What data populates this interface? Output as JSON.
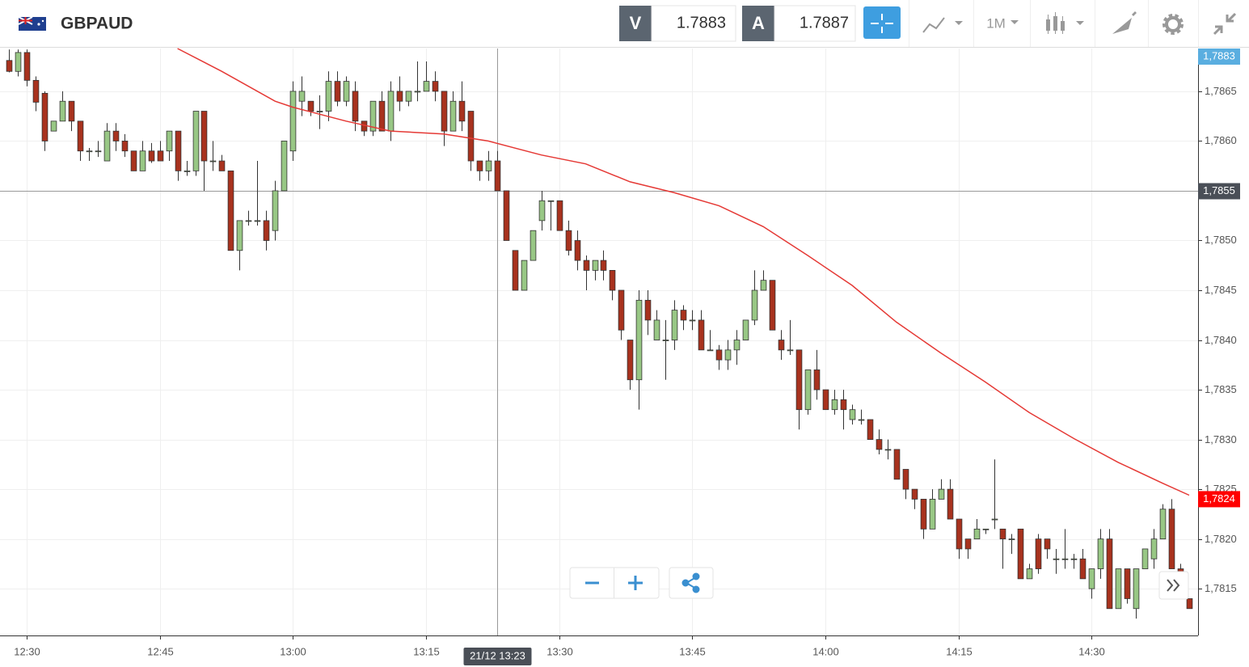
{
  "toolbar": {
    "symbol": "GBPAUD",
    "bid_label": "V",
    "bid": "1.7883",
    "ask_label": "A",
    "ask": "1.7887",
    "timeframe": "1M"
  },
  "chart_data": {
    "type": "candlestick",
    "up_color": "#98c785",
    "down_color": "#a8321e",
    "xlim": [
      "12:27",
      "14:42"
    ],
    "xticks": [
      "12:30",
      "12:45",
      "13:00",
      "13:15",
      "13:30",
      "13:45",
      "14:00",
      "14:15",
      "14:30"
    ],
    "ylim": [
      1.78103,
      1.78693
    ],
    "yticks": [
      {
        "value": 1.7865,
        "label": "1,7865"
      },
      {
        "value": 1.786,
        "label": "1,7860"
      },
      {
        "value": 1.7855,
        "label": "1,7855"
      },
      {
        "value": 1.785,
        "label": "1,7850"
      },
      {
        "value": 1.7845,
        "label": "1,7845"
      },
      {
        "value": 1.784,
        "label": "1,7840"
      },
      {
        "value": 1.7835,
        "label": "1,7835"
      },
      {
        "value": 1.783,
        "label": "1,7830"
      },
      {
        "value": 1.7825,
        "label": "1,7825"
      },
      {
        "value": 1.782,
        "label": "1,7820"
      },
      {
        "value": 1.7815,
        "label": "1,7815"
      }
    ],
    "grid": true,
    "x": [
      "12:28",
      "12:29",
      "12:30",
      "12:31",
      "12:32",
      "12:33",
      "12:34",
      "12:35",
      "12:36",
      "12:37",
      "12:38",
      "12:39",
      "12:40",
      "12:41",
      "12:42",
      "12:43",
      "12:44",
      "12:45",
      "12:46",
      "12:47",
      "12:48",
      "12:49",
      "12:50",
      "12:51",
      "12:52",
      "12:53",
      "12:54",
      "12:55",
      "12:56",
      "12:57",
      "12:58",
      "12:59",
      "13:00",
      "13:01",
      "13:02",
      "13:03",
      "13:04",
      "13:05",
      "13:06",
      "13:07",
      "13:08",
      "13:09",
      "13:10",
      "13:11",
      "13:12",
      "13:13",
      "13:14",
      "13:15",
      "13:16",
      "13:17",
      "13:18",
      "13:19",
      "13:20",
      "13:21",
      "13:22",
      "13:23",
      "13:24",
      "13:25",
      "13:26",
      "13:27",
      "13:28",
      "13:29",
      "13:30",
      "13:31",
      "13:32",
      "13:33",
      "13:34",
      "13:35",
      "13:36",
      "13:37",
      "13:38",
      "13:39",
      "13:40",
      "13:41",
      "13:42",
      "13:43",
      "13:44",
      "13:45",
      "13:46",
      "13:47",
      "13:48",
      "13:49",
      "13:50",
      "13:51",
      "13:52",
      "13:53",
      "13:54",
      "13:55",
      "13:56",
      "13:57",
      "13:58",
      "13:59",
      "14:00",
      "14:01",
      "14:02",
      "14:03",
      "14:04",
      "14:05",
      "14:06",
      "14:07",
      "14:08",
      "14:09",
      "14:10",
      "14:11",
      "14:12",
      "14:13",
      "14:14",
      "14:15",
      "14:16",
      "14:17",
      "14:18",
      "14:19",
      "14:20",
      "14:21",
      "14:22",
      "14:23",
      "14:24",
      "14:25",
      "14:26",
      "14:27",
      "14:28",
      "14:29",
      "14:30",
      "14:31",
      "14:32",
      "14:33",
      "14:34",
      "14:35",
      "14:36",
      "14:37",
      "14:38",
      "14:39",
      "14:40",
      "14:41"
    ],
    "ohlc": [
      [
        1.78681,
        1.78692,
        1.78669,
        1.7867
      ],
      [
        1.7867,
        1.78692,
        1.78665,
        1.78689
      ],
      [
        1.78689,
        1.78692,
        1.78655,
        1.78661
      ],
      [
        1.78661,
        1.78665,
        1.7863,
        1.78639
      ],
      [
        1.78648,
        1.7865,
        1.7859,
        1.786
      ],
      [
        1.7861,
        1.7862,
        1.7861,
        1.7862
      ],
      [
        1.7862,
        1.7865,
        1.7862,
        1.7864
      ],
      [
        1.7864,
        1.7864,
        1.7861,
        1.7862
      ],
      [
        1.7862,
        1.7862,
        1.7858,
        1.7859
      ],
      [
        1.7859,
        1.78593,
        1.7858,
        1.7859
      ],
      [
        1.7859,
        1.786,
        1.78584,
        1.7859
      ],
      [
        1.7858,
        1.78618,
        1.7858,
        1.7861
      ],
      [
        1.7861,
        1.78618,
        1.7859,
        1.786
      ],
      [
        1.786,
        1.78607,
        1.78584,
        1.7859
      ],
      [
        1.7859,
        1.7859,
        1.7857,
        1.7857
      ],
      [
        1.7857,
        1.786,
        1.7857,
        1.7859
      ],
      [
        1.7859,
        1.78598,
        1.78578,
        1.7858
      ],
      [
        1.7859,
        1.786,
        1.7858,
        1.7858
      ],
      [
        1.7859,
        1.7861,
        1.7858,
        1.7861
      ],
      [
        1.7861,
        1.7861,
        1.7856,
        1.7857
      ],
      [
        1.7857,
        1.7858,
        1.78565,
        1.7857
      ],
      [
        1.7857,
        1.7863,
        1.78565,
        1.7863
      ],
      [
        1.7863,
        1.7863,
        1.7855,
        1.7858
      ],
      [
        1.7858,
        1.786,
        1.7857,
        1.7858
      ],
      [
        1.7858,
        1.78586,
        1.7857,
        1.7857
      ],
      [
        1.7857,
        1.7857,
        1.7849,
        1.7849
      ],
      [
        1.7849,
        1.7852,
        1.7847,
        1.7852
      ],
      [
        1.7852,
        1.7853,
        1.78515,
        1.7852
      ],
      [
        1.7852,
        1.7858,
        1.78515,
        1.7852
      ],
      [
        1.7852,
        1.7853,
        1.7849,
        1.785
      ],
      [
        1.7851,
        1.7856,
        1.785,
        1.7855
      ],
      [
        1.7855,
        1.786,
        1.7855,
        1.786
      ],
      [
        1.7859,
        1.7866,
        1.7858,
        1.7865
      ],
      [
        1.7864,
        1.78665,
        1.78625,
        1.7865
      ],
      [
        1.7864,
        1.7864,
        1.78625,
        1.7863
      ],
      [
        1.7863,
        1.78646,
        1.78612,
        1.7863
      ],
      [
        1.7863,
        1.7867,
        1.7862,
        1.7866
      ],
      [
        1.7866,
        1.7867,
        1.78635,
        1.7864
      ],
      [
        1.7864,
        1.78665,
        1.78635,
        1.7866
      ],
      [
        1.7865,
        1.7866,
        1.7861,
        1.7862
      ],
      [
        1.7862,
        1.7862,
        1.78605,
        1.7861
      ],
      [
        1.7861,
        1.7864,
        1.78605,
        1.7864
      ],
      [
        1.7864,
        1.7865,
        1.7861,
        1.7861
      ],
      [
        1.7861,
        1.7866,
        1.786,
        1.7865
      ],
      [
        1.7865,
        1.78665,
        1.7863,
        1.7864
      ],
      [
        1.7864,
        1.7865,
        1.78635,
        1.7865
      ],
      [
        1.7865,
        1.7868,
        1.7864,
        1.7865
      ],
      [
        1.7865,
        1.7868,
        1.7865,
        1.7866
      ],
      [
        1.7866,
        1.7867,
        1.7864,
        1.7865
      ],
      [
        1.7865,
        1.7865,
        1.78595,
        1.7861
      ],
      [
        1.7861,
        1.7865,
        1.7861,
        1.7864
      ],
      [
        1.7864,
        1.7866,
        1.7861,
        1.7862
      ],
      [
        1.7863,
        1.7863,
        1.7857,
        1.7858
      ],
      [
        1.7858,
        1.7858,
        1.7856,
        1.7857
      ],
      [
        1.7857,
        1.7859,
        1.7856,
        1.7858
      ],
      [
        1.7858,
        1.7859,
        1.7855,
        1.7855
      ],
      [
        1.7855,
        1.7855,
        1.785,
        1.785
      ],
      [
        1.7849,
        1.7849,
        1.7845,
        1.7845
      ],
      [
        1.7845,
        1.7848,
        1.7845,
        1.7848
      ],
      [
        1.7848,
        1.7851,
        1.7848,
        1.7851
      ],
      [
        1.7852,
        1.7855,
        1.7851,
        1.7854
      ],
      [
        1.7854,
        1.7854,
        1.7851,
        1.7854
      ],
      [
        1.7854,
        1.7854,
        1.7851,
        1.7851
      ],
      [
        1.7851,
        1.7852,
        1.78485,
        1.7849
      ],
      [
        1.785,
        1.7851,
        1.7847,
        1.7848
      ],
      [
        1.7848,
        1.78485,
        1.7845,
        1.7847
      ],
      [
        1.7847,
        1.7848,
        1.7846,
        1.7848
      ],
      [
        1.7848,
        1.7849,
        1.7846,
        1.7847
      ],
      [
        1.7847,
        1.7847,
        1.7844,
        1.7845
      ],
      [
        1.7845,
        1.7845,
        1.784,
        1.7841
      ],
      [
        1.784,
        1.784,
        1.7835,
        1.7836
      ],
      [
        1.7836,
        1.7845,
        1.7833,
        1.7844
      ],
      [
        1.7844,
        1.7845,
        1.78405,
        1.7842
      ],
      [
        1.784,
        1.7843,
        1.784,
        1.7842
      ],
      [
        1.784,
        1.7842,
        1.7836,
        1.784
      ],
      [
        1.784,
        1.7844,
        1.7839,
        1.7843
      ],
      [
        1.7843,
        1.78435,
        1.7841,
        1.7842
      ],
      [
        1.7842,
        1.7843,
        1.7841,
        1.7842
      ],
      [
        1.7842,
        1.7843,
        1.7839,
        1.7839
      ],
      [
        1.7839,
        1.7841,
        1.7839,
        1.7839
      ],
      [
        1.7839,
        1.78395,
        1.7837,
        1.7838
      ],
      [
        1.7838,
        1.784,
        1.7837,
        1.7839
      ],
      [
        1.7839,
        1.7841,
        1.78375,
        1.784
      ],
      [
        1.784,
        1.7842,
        1.784,
        1.7842
      ],
      [
        1.7842,
        1.7847,
        1.78415,
        1.7845
      ],
      [
        1.7845,
        1.7847,
        1.7845,
        1.7846
      ],
      [
        1.7846,
        1.7846,
        1.7841,
        1.7841
      ],
      [
        1.784,
        1.7841,
        1.7838,
        1.7839
      ],
      [
        1.7839,
        1.7842,
        1.78385,
        1.7839
      ],
      [
        1.7839,
        1.7839,
        1.7831,
        1.7833
      ],
      [
        1.7833,
        1.7837,
        1.78325,
        1.7837
      ],
      [
        1.7837,
        1.7839,
        1.7834,
        1.7835
      ],
      [
        1.7835,
        1.7835,
        1.7833,
        1.7833
      ],
      [
        1.7833,
        1.7835,
        1.78325,
        1.7834
      ],
      [
        1.7834,
        1.7835,
        1.7831,
        1.7833
      ],
      [
        1.7832,
        1.78335,
        1.78315,
        1.7833
      ],
      [
        1.7832,
        1.7833,
        1.78315,
        1.7832
      ],
      [
        1.7832,
        1.7832,
        1.783,
        1.783
      ],
      [
        1.783,
        1.7831,
        1.78285,
        1.7829
      ],
      [
        1.7829,
        1.783,
        1.7828,
        1.7829
      ],
      [
        1.7829,
        1.7829,
        1.7826,
        1.7826
      ],
      [
        1.7827,
        1.7827,
        1.7824,
        1.7825
      ],
      [
        1.7825,
        1.7825,
        1.7823,
        1.7824
      ],
      [
        1.7824,
        1.7824,
        1.782,
        1.7821
      ],
      [
        1.7821,
        1.7825,
        1.7821,
        1.7824
      ],
      [
        1.7824,
        1.7826,
        1.7824,
        1.7825
      ],
      [
        1.7825,
        1.7826,
        1.7822,
        1.7822
      ],
      [
        1.7822,
        1.7822,
        1.7818,
        1.7819
      ],
      [
        1.782,
        1.782,
        1.7818,
        1.7819
      ],
      [
        1.782,
        1.7822,
        1.782,
        1.7821
      ],
      [
        1.7821,
        1.7821,
        1.78205,
        1.7821
      ],
      [
        1.7822,
        1.7828,
        1.7821,
        1.7822
      ],
      [
        1.7821,
        1.7821,
        1.7817,
        1.782
      ],
      [
        1.782,
        1.78205,
        1.78185,
        1.782
      ],
      [
        1.7821,
        1.7821,
        1.7816,
        1.7816
      ],
      [
        1.7816,
        1.78175,
        1.7816,
        1.7817
      ],
      [
        1.782,
        1.78205,
        1.78165,
        1.7817
      ],
      [
        1.782,
        1.782,
        1.7818,
        1.7819
      ],
      [
        1.7818,
        1.7819,
        1.78165,
        1.7818
      ],
      [
        1.7818,
        1.7821,
        1.7817,
        1.7818
      ],
      [
        1.7818,
        1.78185,
        1.7817,
        1.7818
      ],
      [
        1.7818,
        1.7819,
        1.7816,
        1.7816
      ],
      [
        1.7815,
        1.7817,
        1.7814,
        1.7817
      ],
      [
        1.7817,
        1.7821,
        1.7816,
        1.782
      ],
      [
        1.782,
        1.7821,
        1.7813,
        1.7813
      ],
      [
        1.7813,
        1.7817,
        1.7813,
        1.7817
      ],
      [
        1.7817,
        1.7817,
        1.78135,
        1.7814
      ],
      [
        1.7813,
        1.7817,
        1.7812,
        1.7817
      ],
      [
        1.7817,
        1.7819,
        1.7817,
        1.7819
      ],
      [
        1.7818,
        1.7821,
        1.7817,
        1.782
      ],
      [
        1.782,
        1.78235,
        1.782,
        1.7823
      ],
      [
        1.7823,
        1.7824,
        1.7817,
        1.7817
      ],
      [
        1.7817,
        1.78175,
        1.78145,
        1.7815
      ],
      [
        1.7814,
        1.7814,
        1.7813,
        1.7813
      ]
    ],
    "ma": {
      "color": "#e53935",
      "x": [
        "12:47",
        "12:52",
        "12:58",
        "13:00",
        "13:06",
        "13:11",
        "13:17",
        "13:22",
        "13:28",
        "13:33",
        "13:38",
        "13:43",
        "13:48",
        "13:53",
        "13:58",
        "14:03",
        "14:08",
        "14:13",
        "14:18",
        "14:23",
        "14:28",
        "14:33",
        "14:38",
        "14:41"
      ],
      "values": [
        1.78693,
        1.7867,
        1.7864,
        1.78634,
        1.7862,
        1.7861,
        1.78607,
        1.786,
        1.78586,
        1.78577,
        1.78559,
        1.78548,
        1.78535,
        1.78514,
        1.78485,
        1.78455,
        1.78418,
        1.78387,
        1.78358,
        1.78327,
        1.78301,
        1.78277,
        1.78256,
        1.78244
      ]
    },
    "price_tags": [
      {
        "value": 1.7883,
        "label": "1,7883",
        "color": "#5aaee0"
      },
      {
        "value": 1.7824,
        "label": "1,7824",
        "color": "#ff0000"
      }
    ],
    "crosshair": {
      "x": "13:23",
      "y": 1.7855,
      "x_label": "21/12 13:23",
      "y_label": "1,7855"
    }
  }
}
